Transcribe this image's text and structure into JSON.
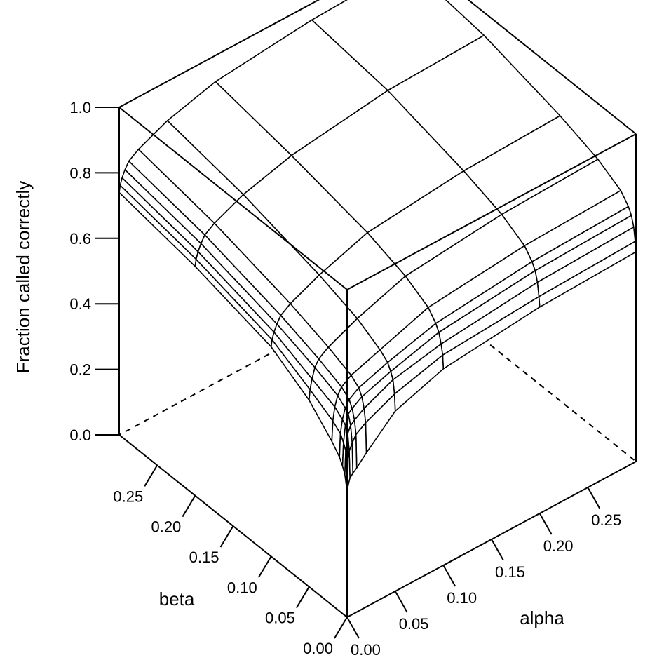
{
  "chart_data": {
    "type": "surface",
    "title": "",
    "xlabel": "alpha",
    "ylabel": "beta",
    "zlabel": "Fraction called correctly",
    "xlim": [
      0,
      0.3
    ],
    "ylim": [
      0,
      0.3
    ],
    "zlim": [
      0,
      1
    ],
    "x_ticks": [
      "0.00",
      "0.05",
      "0.10",
      "0.15",
      "0.20",
      "0.25"
    ],
    "y_ticks": [
      "0.00",
      "0.05",
      "0.10",
      "0.15",
      "0.20",
      "0.25"
    ],
    "z_ticks": [
      "0.0",
      "0.2",
      "0.4",
      "0.6",
      "0.8",
      "1.0"
    ],
    "x": [
      0,
      0.001,
      0.003,
      0.006,
      0.01,
      0.02,
      0.05,
      0.1,
      0.2,
      0.3
    ],
    "y": [
      0,
      0.001,
      0.003,
      0.006,
      0.01,
      0.02,
      0.05,
      0.1,
      0.2,
      0.3
    ],
    "z": [
      [
        0.38,
        0.4,
        0.42,
        0.43,
        0.44,
        0.47,
        0.55,
        0.6,
        0.63,
        0.64
      ],
      [
        0.4,
        0.47,
        0.5,
        0.52,
        0.54,
        0.56,
        0.6,
        0.64,
        0.66,
        0.67
      ],
      [
        0.43,
        0.5,
        0.55,
        0.57,
        0.58,
        0.6,
        0.64,
        0.67,
        0.7,
        0.71
      ],
      [
        0.45,
        0.52,
        0.57,
        0.6,
        0.61,
        0.63,
        0.66,
        0.7,
        0.73,
        0.74
      ],
      [
        0.47,
        0.54,
        0.58,
        0.61,
        0.63,
        0.65,
        0.68,
        0.72,
        0.75,
        0.76
      ],
      [
        0.5,
        0.56,
        0.6,
        0.63,
        0.65,
        0.67,
        0.7,
        0.75,
        0.78,
        0.79
      ],
      [
        0.57,
        0.6,
        0.63,
        0.66,
        0.68,
        0.7,
        0.74,
        0.79,
        0.82,
        0.83
      ],
      [
        0.64,
        0.66,
        0.68,
        0.7,
        0.72,
        0.74,
        0.78,
        0.83,
        0.86,
        0.87
      ],
      [
        0.7,
        0.72,
        0.74,
        0.76,
        0.78,
        0.8,
        0.84,
        0.88,
        0.92,
        0.93
      ],
      [
        0.74,
        0.76,
        0.78,
        0.8,
        0.82,
        0.84,
        0.88,
        0.92,
        0.95,
        0.96
      ]
    ],
    "grid": false,
    "legend": "none"
  }
}
